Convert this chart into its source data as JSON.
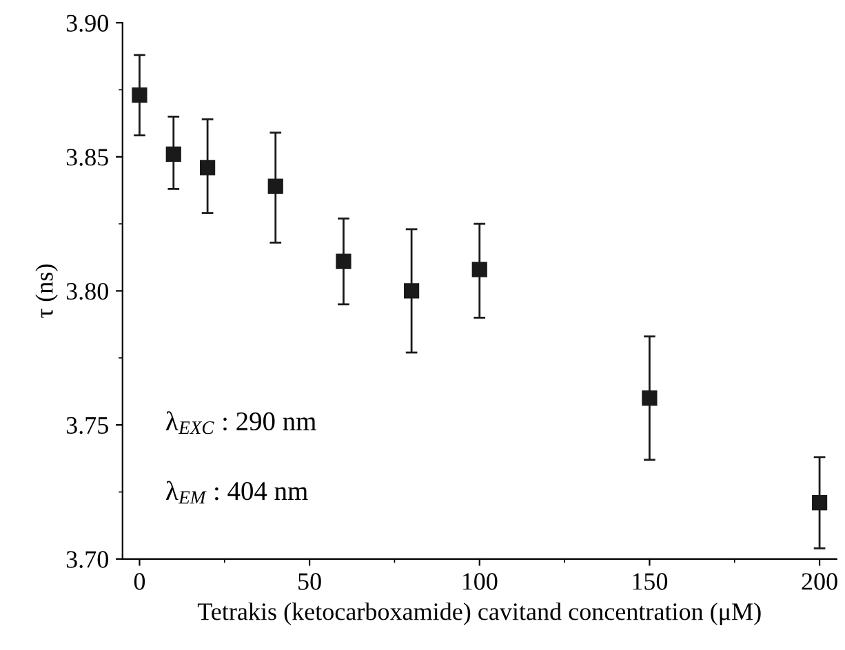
{
  "chart_data": {
    "type": "scatter",
    "xlabel": "Tetrakis (ketocarboxamide) cavitand concentration (μM)",
    "ylabel": "τ (ns)",
    "x": [
      0,
      10,
      20,
      40,
      60,
      80,
      100,
      150,
      200
    ],
    "series": [
      {
        "color": "#1a1a1a",
        "values": [
          3.873,
          3.851,
          3.846,
          3.839,
          3.811,
          3.8,
          3.808,
          3.76,
          3.721
        ],
        "errors": [
          [
            3.858,
            3.888
          ],
          [
            3.838,
            3.865
          ],
          [
            3.829,
            3.864
          ],
          [
            3.818,
            3.859
          ],
          [
            3.795,
            3.827
          ],
          [
            3.777,
            3.823
          ],
          [
            3.79,
            3.825
          ],
          [
            3.737,
            3.783
          ],
          [
            3.704,
            3.738
          ]
        ]
      }
    ],
    "marker": "square",
    "xlim": [
      -5,
      205
    ],
    "xticks": [
      0,
      50,
      100,
      150,
      200
    ],
    "ylim": [
      3.7,
      3.9
    ],
    "yticks": [
      {
        "value": 3.7,
        "label": "3.70"
      },
      {
        "value": 3.75,
        "label": "3.75"
      },
      {
        "value": 3.8,
        "label": "3.80"
      },
      {
        "value": 3.85,
        "label": "3.85"
      },
      {
        "value": 3.9,
        "label": "3.90"
      }
    ],
    "annotations": [
      "λ$_{EXC}$ : 290 nm",
      "λ$_{EM}$ : 404 nm"
    ],
    "grid": false,
    "legend": false
  }
}
